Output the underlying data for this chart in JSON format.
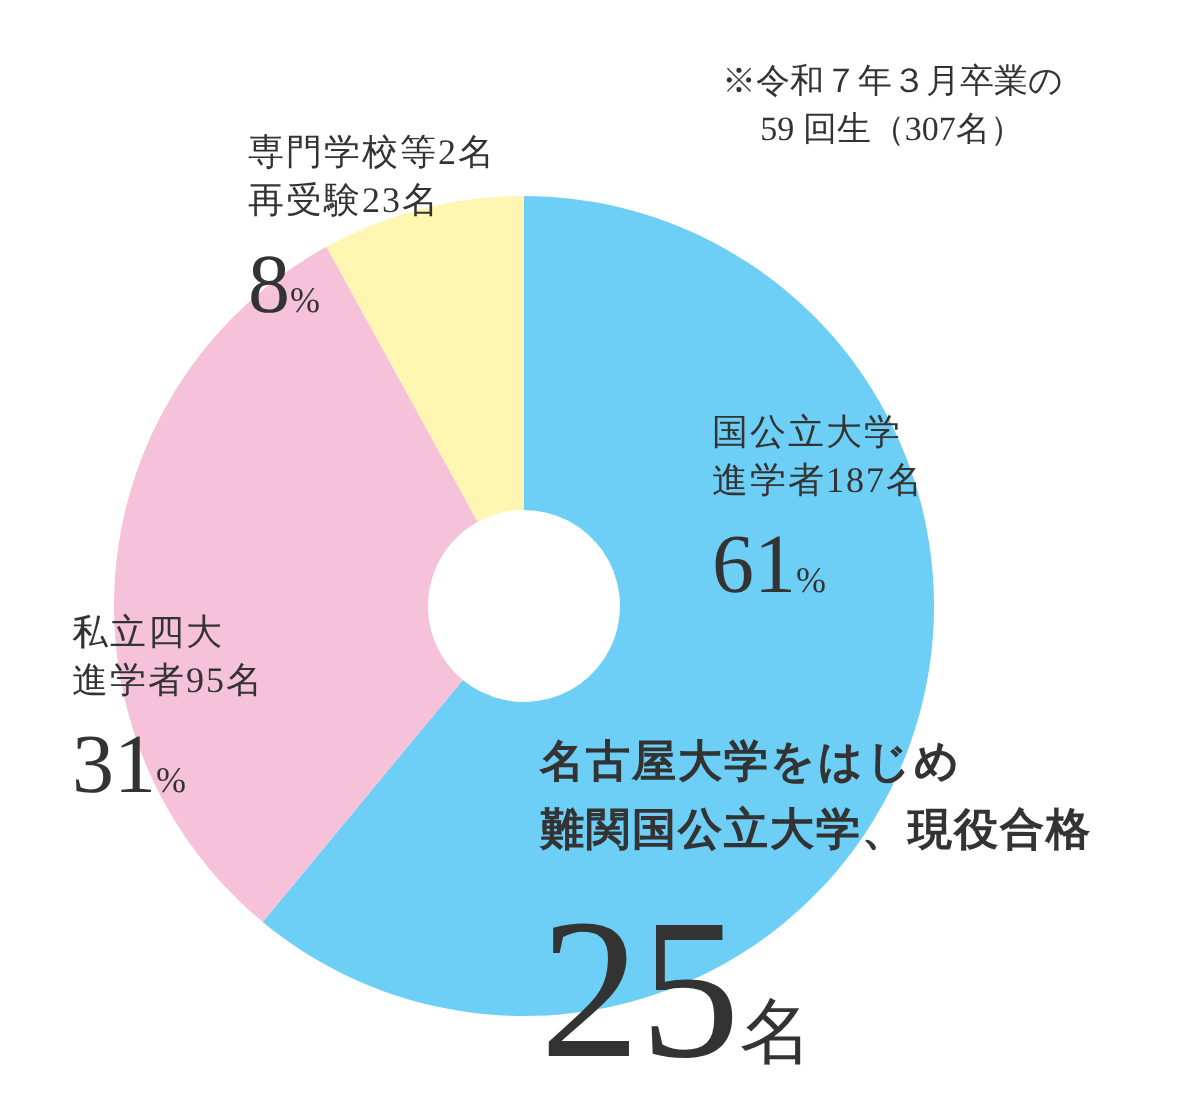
{
  "chart_data": {
    "type": "donut",
    "categories": [
      "国公立大学進学者187名",
      "私立四大進学者95名",
      "専門学校等2名再受験23名"
    ],
    "values": [
      61,
      31,
      8
    ],
    "colors": [
      "#6dcff6",
      "#f5c2da",
      "#fff6b2"
    ],
    "value_labels": [
      "61%",
      "31%",
      "8%"
    ],
    "annotations": [
      "※令和７年３月卒業の59 回生（307名）",
      "名古屋大学をはじめ難関国公立大学、現役合格",
      "25名"
    ]
  }
}
